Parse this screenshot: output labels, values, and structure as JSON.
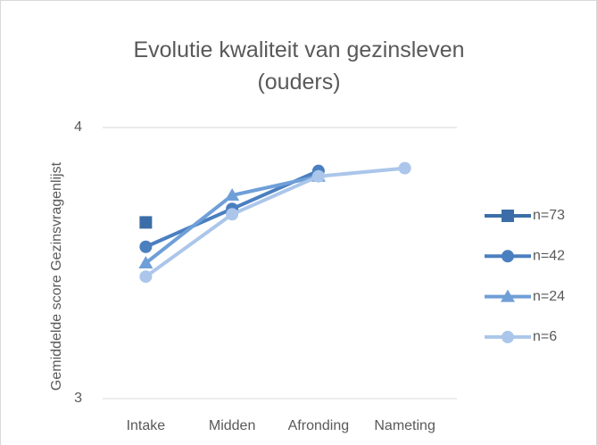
{
  "chart_data": {
    "type": "line",
    "title": "Evolutie kwaliteit van gezinsleven (ouders)",
    "y_label": "Gemiddelde score Gezinsvragenlijst",
    "categories": [
      "Intake",
      "Midden",
      "Afronding",
      "Nameting"
    ],
    "series": [
      {
        "name": "n=73",
        "color": "#3b6ea8",
        "marker": "square",
        "values": [
          3.65,
          null,
          null,
          null
        ]
      },
      {
        "name": "n=42",
        "color": "#4a7fc0",
        "marker": "circle",
        "values": [
          3.56,
          3.7,
          3.84,
          null
        ]
      },
      {
        "name": "n=24",
        "color": "#6f9fd8",
        "marker": "triangle",
        "values": [
          3.5,
          3.75,
          3.82,
          null
        ]
      },
      {
        "name": "n=6",
        "color": "#abc6ea",
        "marker": "circle",
        "values": [
          3.45,
          3.68,
          3.82,
          3.85
        ]
      }
    ],
    "ylim": [
      3,
      4
    ],
    "yticks": [
      3,
      4
    ],
    "grid": true,
    "legend": "right"
  }
}
